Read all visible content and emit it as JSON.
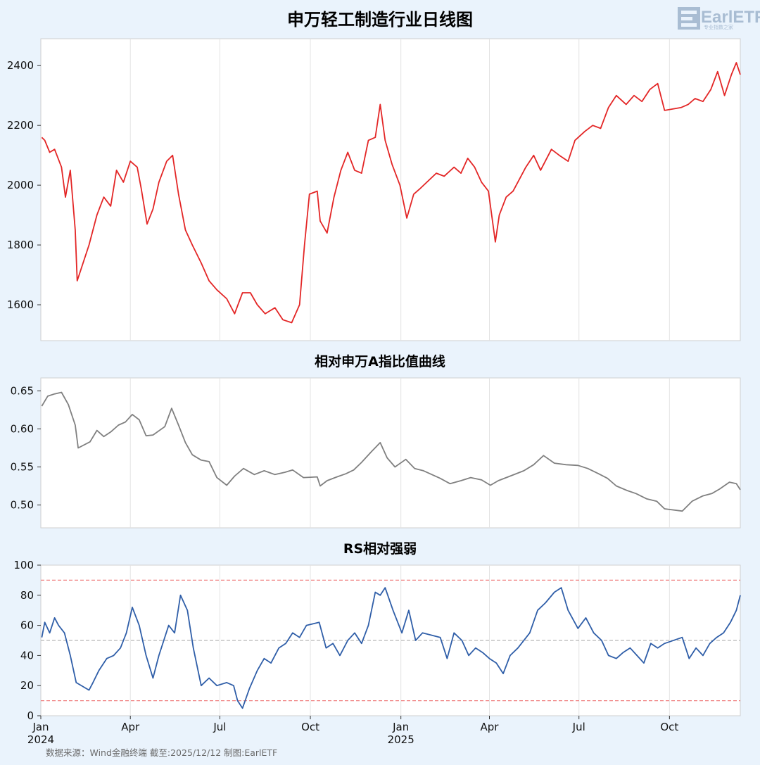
{
  "header": {
    "logo_text": "EarlETF",
    "logo_subtext": "专业指数之家"
  },
  "footer": {
    "source": "数据来源：Wind金融终端 截至:2025/12/12 制图:EarlETF"
  },
  "chart_data": [
    {
      "type": "line",
      "title": "申万轻工制造行业日线图",
      "ylim": [
        1480,
        2490
      ],
      "yticks": [
        1600,
        1800,
        2000,
        2200,
        2400
      ],
      "color": "#e32626",
      "series": [
        {
          "x_dates": [
            "2024-01-02",
            "2024-01-05",
            "2024-01-10",
            "2024-01-15",
            "2024-01-22",
            "2024-01-26",
            "2024-01-31",
            "2024-02-05",
            "2024-02-07",
            "2024-02-19",
            "2024-02-27",
            "2024-03-05",
            "2024-03-12",
            "2024-03-18",
            "2024-03-25",
            "2024-04-01",
            "2024-04-08",
            "2024-04-12",
            "2024-04-18",
            "2024-04-24",
            "2024-04-30",
            "2024-05-08",
            "2024-05-14",
            "2024-05-20",
            "2024-05-27",
            "2024-06-03",
            "2024-06-12",
            "2024-06-20",
            "2024-06-28",
            "2024-07-08",
            "2024-07-16",
            "2024-07-24",
            "2024-08-01",
            "2024-08-08",
            "2024-08-16",
            "2024-08-26",
            "2024-09-03",
            "2024-09-12",
            "2024-09-20",
            "2024-09-25",
            "2024-09-30",
            "2024-10-08",
            "2024-10-11",
            "2024-10-18",
            "2024-10-25",
            "2024-11-01",
            "2024-11-08",
            "2024-11-15",
            "2024-11-22",
            "2024-11-29",
            "2024-12-06",
            "2024-12-11",
            "2024-12-16",
            "2024-12-23",
            "2024-12-31",
            "2025-01-07",
            "2025-01-14",
            "2025-01-21",
            "2025-02-06",
            "2025-02-14",
            "2025-02-24",
            "2025-03-03",
            "2025-03-10",
            "2025-03-17",
            "2025-03-24",
            "2025-03-31",
            "2025-04-07",
            "2025-04-11",
            "2025-04-18",
            "2025-04-25",
            "2025-05-08",
            "2025-05-16",
            "2025-05-23",
            "2025-06-03",
            "2025-06-11",
            "2025-06-20",
            "2025-06-27",
            "2025-07-07",
            "2025-07-15",
            "2025-07-23",
            "2025-07-31",
            "2025-08-08",
            "2025-08-18",
            "2025-08-26",
            "2025-09-03",
            "2025-09-11",
            "2025-09-19",
            "2025-09-26",
            "2025-10-13",
            "2025-10-20",
            "2025-10-27",
            "2025-11-04",
            "2025-11-12",
            "2025-11-19",
            "2025-11-26",
            "2025-12-03",
            "2025-12-08",
            "2025-12-12"
          ],
          "values": [
            2160,
            2150,
            2110,
            2120,
            2060,
            1960,
            2050,
            1850,
            1680,
            1800,
            1900,
            1960,
            1930,
            2050,
            2010,
            2080,
            2060,
            1990,
            1870,
            1920,
            2010,
            2080,
            2100,
            1970,
            1850,
            1800,
            1740,
            1680,
            1650,
            1620,
            1570,
            1640,
            1640,
            1600,
            1570,
            1590,
            1550,
            1540,
            1600,
            1800,
            1970,
            1980,
            1880,
            1840,
            1960,
            2050,
            2110,
            2050,
            2040,
            2150,
            2160,
            2270,
            2150,
            2070,
            2000,
            1890,
            1970,
            1990,
            2040,
            2030,
            2060,
            2040,
            2090,
            2060,
            2010,
            1980,
            1810,
            1900,
            1960,
            1980,
            2060,
            2100,
            2050,
            2120,
            2100,
            2080,
            2150,
            2180,
            2200,
            2190,
            2260,
            2300,
            2270,
            2300,
            2280,
            2320,
            2340,
            2250,
            2260,
            2270,
            2290,
            2280,
            2320,
            2380,
            2300,
            2370,
            2410,
            2370
          ]
        }
      ]
    },
    {
      "type": "line",
      "title": "相对申万A指比值曲线",
      "ylim": [
        0.47,
        0.667
      ],
      "yticks": [
        0.5,
        0.55,
        0.6,
        0.65
      ],
      "ytick_labels": [
        "0.50",
        "0.55",
        "0.60",
        "0.65"
      ],
      "color": "#808080",
      "series": [
        {
          "x_dates": [
            "2024-01-02",
            "2024-01-08",
            "2024-01-15",
            "2024-01-22",
            "2024-01-29",
            "2024-02-05",
            "2024-02-08",
            "2024-02-20",
            "2024-02-27",
            "2024-03-05",
            "2024-03-12",
            "2024-03-20",
            "2024-03-27",
            "2024-04-03",
            "2024-04-10",
            "2024-04-17",
            "2024-04-24",
            "2024-05-06",
            "2024-05-13",
            "2024-05-20",
            "2024-05-27",
            "2024-06-03",
            "2024-06-12",
            "2024-06-20",
            "2024-06-28",
            "2024-07-08",
            "2024-07-16",
            "2024-07-25",
            "2024-08-05",
            "2024-08-15",
            "2024-08-26",
            "2024-09-05",
            "2024-09-13",
            "2024-09-24",
            "2024-10-08",
            "2024-10-11",
            "2024-10-18",
            "2024-10-28",
            "2024-11-06",
            "2024-11-14",
            "2024-11-22",
            "2024-12-02",
            "2024-12-11",
            "2024-12-18",
            "2024-12-26",
            "2025-01-06",
            "2025-01-15",
            "2025-01-24",
            "2025-02-10",
            "2025-02-20",
            "2025-03-03",
            "2025-03-13",
            "2025-03-24",
            "2025-04-02",
            "2025-04-10",
            "2025-04-22",
            "2025-05-06",
            "2025-05-16",
            "2025-05-26",
            "2025-06-06",
            "2025-06-18",
            "2025-06-30",
            "2025-07-10",
            "2025-07-21",
            "2025-07-30",
            "2025-08-08",
            "2025-08-19",
            "2025-08-28",
            "2025-09-08",
            "2025-09-18",
            "2025-09-26",
            "2025-10-14",
            "2025-10-24",
            "2025-11-04",
            "2025-11-13",
            "2025-11-21",
            "2025-12-01",
            "2025-12-08",
            "2025-12-12"
          ],
          "values": [
            0.63,
            0.643,
            0.646,
            0.648,
            0.632,
            0.605,
            0.575,
            0.583,
            0.598,
            0.59,
            0.596,
            0.605,
            0.609,
            0.619,
            0.612,
            0.591,
            0.592,
            0.603,
            0.627,
            0.605,
            0.582,
            0.566,
            0.559,
            0.557,
            0.536,
            0.526,
            0.538,
            0.548,
            0.54,
            0.545,
            0.54,
            0.543,
            0.546,
            0.536,
            0.537,
            0.525,
            0.532,
            0.537,
            0.541,
            0.546,
            0.556,
            0.57,
            0.582,
            0.562,
            0.55,
            0.56,
            0.548,
            0.545,
            0.535,
            0.528,
            0.532,
            0.536,
            0.533,
            0.526,
            0.532,
            0.538,
            0.545,
            0.553,
            0.565,
            0.555,
            0.553,
            0.552,
            0.548,
            0.541,
            0.535,
            0.525,
            0.519,
            0.515,
            0.508,
            0.505,
            0.495,
            0.492,
            0.505,
            0.512,
            0.515,
            0.521,
            0.53,
            0.528,
            0.52
          ]
        }
      ]
    },
    {
      "type": "line",
      "title": "RS相对强弱",
      "ylim": [
        0,
        100
      ],
      "yticks": [
        0,
        20,
        40,
        60,
        80,
        100
      ],
      "color": "#2f5ea8",
      "hlines": [
        {
          "value": 90,
          "color": "#f08080"
        },
        {
          "value": 50,
          "color": "#b8b8b8"
        },
        {
          "value": 10,
          "color": "#f08080"
        }
      ],
      "series": [
        {
          "x_dates": [
            "2024-01-02",
            "2024-01-05",
            "2024-01-10",
            "2024-01-15",
            "2024-01-19",
            "2024-01-25",
            "2024-01-31",
            "2024-02-06",
            "2024-02-19",
            "2024-02-23",
            "2024-02-29",
            "2024-03-08",
            "2024-03-15",
            "2024-03-22",
            "2024-03-28",
            "2024-04-03",
            "2024-04-10",
            "2024-04-17",
            "2024-04-24",
            "2024-04-30",
            "2024-05-10",
            "2024-05-16",
            "2024-05-22",
            "2024-05-29",
            "2024-06-04",
            "2024-06-12",
            "2024-06-20",
            "2024-06-28",
            "2024-07-08",
            "2024-07-15",
            "2024-07-19",
            "2024-07-24",
            "2024-07-31",
            "2024-08-08",
            "2024-08-15",
            "2024-08-22",
            "2024-08-30",
            "2024-09-06",
            "2024-09-13",
            "2024-09-20",
            "2024-09-27",
            "2024-10-10",
            "2024-10-17",
            "2024-10-24",
            "2024-10-31",
            "2024-11-08",
            "2024-11-15",
            "2024-11-22",
            "2024-11-29",
            "2024-12-06",
            "2024-12-11",
            "2024-12-16",
            "2024-12-24",
            "2025-01-02",
            "2025-01-09",
            "2025-01-16",
            "2025-01-23",
            "2025-02-10",
            "2025-02-17",
            "2025-02-24",
            "2025-03-04",
            "2025-03-11",
            "2025-03-18",
            "2025-03-25",
            "2025-04-01",
            "2025-04-08",
            "2025-04-15",
            "2025-04-22",
            "2025-04-30",
            "2025-05-12",
            "2025-05-20",
            "2025-05-28",
            "2025-06-06",
            "2025-06-13",
            "2025-06-20",
            "2025-06-30",
            "2025-07-08",
            "2025-07-16",
            "2025-07-24",
            "2025-07-31",
            "2025-08-08",
            "2025-08-15",
            "2025-08-22",
            "2025-08-29",
            "2025-09-05",
            "2025-09-12",
            "2025-09-19",
            "2025-09-26",
            "2025-10-14",
            "2025-10-21",
            "2025-10-28",
            "2025-11-04",
            "2025-11-11",
            "2025-11-18",
            "2025-11-25",
            "2025-12-02",
            "2025-12-08",
            "2025-12-12"
          ],
          "values": [
            52,
            62,
            55,
            65,
            60,
            55,
            40,
            22,
            17,
            22,
            30,
            38,
            40,
            45,
            55,
            72,
            60,
            40,
            25,
            40,
            60,
            55,
            80,
            70,
            45,
            20,
            25,
            20,
            22,
            20,
            10,
            5,
            18,
            30,
            38,
            35,
            45,
            48,
            55,
            52,
            60,
            62,
            45,
            48,
            40,
            50,
            55,
            48,
            60,
            82,
            80,
            85,
            70,
            55,
            70,
            50,
            55,
            52,
            38,
            55,
            50,
            40,
            45,
            42,
            38,
            35,
            28,
            40,
            45,
            55,
            70,
            75,
            82,
            85,
            70,
            58,
            65,
            55,
            50,
            40,
            38,
            42,
            45,
            40,
            35,
            48,
            45,
            48,
            52,
            38,
            45,
            40,
            48,
            52,
            55,
            62,
            70,
            80
          ]
        }
      ]
    }
  ],
  "x_axis": {
    "ticks": [
      {
        "date": "2024-01-01",
        "label": "Jan",
        "year": "2024"
      },
      {
        "date": "2024-04-01",
        "label": "Apr",
        "year": ""
      },
      {
        "date": "2024-07-01",
        "label": "Jul",
        "year": ""
      },
      {
        "date": "2024-10-01",
        "label": "Oct",
        "year": ""
      },
      {
        "date": "2025-01-01",
        "label": "Jan",
        "year": "2025"
      },
      {
        "date": "2025-04-01",
        "label": "Apr",
        "year": ""
      },
      {
        "date": "2025-07-01",
        "label": "Jul",
        "year": ""
      },
      {
        "date": "2025-10-01",
        "label": "Oct",
        "year": ""
      }
    ],
    "range": [
      "2024-01-01",
      "2025-12-12"
    ]
  }
}
